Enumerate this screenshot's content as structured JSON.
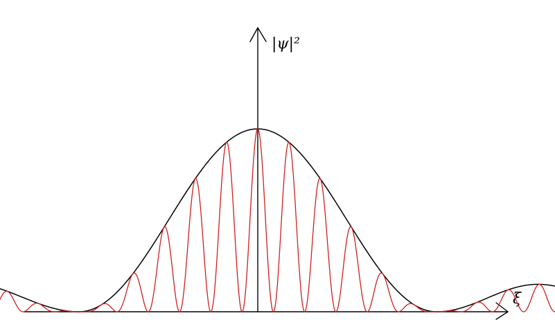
{
  "figure": {
    "y_axis_label": "|ψ|²",
    "x_axis_label": "ξ"
  },
  "colors": {
    "background": "#ffffff",
    "axes": "#000000",
    "envelope": "#000000",
    "fringes": "#cc1f1f"
  },
  "chart_data": {
    "type": "line",
    "series": [
      {
        "description_role": "envelope",
        "lobes": [
          {
            "from": -0.5,
            "to": -0.22,
            "peak": 0.16
          },
          {
            "from": -0.22,
            "to": 0.22,
            "peak": 1.0
          },
          {
            "from": 0.22,
            "to": 0.47,
            "peak": 0.15
          }
        ]
      },
      {
        "description_role": "fringes",
        "fringe_period": 0.0385
      }
    ],
    "xlim": [
      -0.6,
      0.6
    ],
    "ylim": [
      0,
      1.0
    ]
  }
}
